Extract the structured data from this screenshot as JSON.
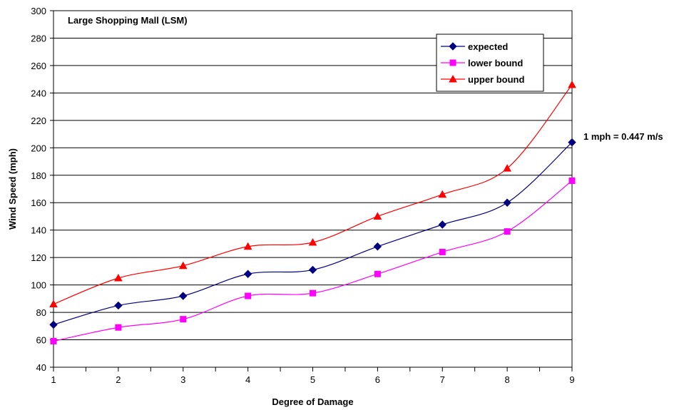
{
  "chart_data": {
    "type": "line",
    "title": "Large Shopping Mall (LSM)",
    "xlabel": "Degree of Damage",
    "ylabel": "Wind Speed (mph)",
    "annotation": "1 mph = 0.447 m/s",
    "x": [
      1,
      2,
      3,
      4,
      5,
      6,
      7,
      8,
      9
    ],
    "xlim": [
      1,
      9
    ],
    "ylim": [
      40,
      300
    ],
    "yticks": [
      40,
      60,
      80,
      100,
      120,
      140,
      160,
      180,
      200,
      220,
      240,
      260,
      280,
      300
    ],
    "grid": "horizontal",
    "legend_position": "top-right",
    "series": [
      {
        "name": "expected",
        "color": "#000080",
        "marker": "diamond",
        "values": [
          71,
          85,
          92,
          108,
          111,
          128,
          144,
          160,
          204
        ]
      },
      {
        "name": "lower bound",
        "color": "#ff00ff",
        "marker": "square",
        "values": [
          59,
          69,
          75,
          92,
          94,
          108,
          124,
          139,
          176
        ]
      },
      {
        "name": "upper bound",
        "color": "#ff0000",
        "marker": "triangle",
        "values": [
          86,
          105,
          114,
          128,
          131,
          150,
          166,
          185,
          246
        ]
      }
    ]
  }
}
